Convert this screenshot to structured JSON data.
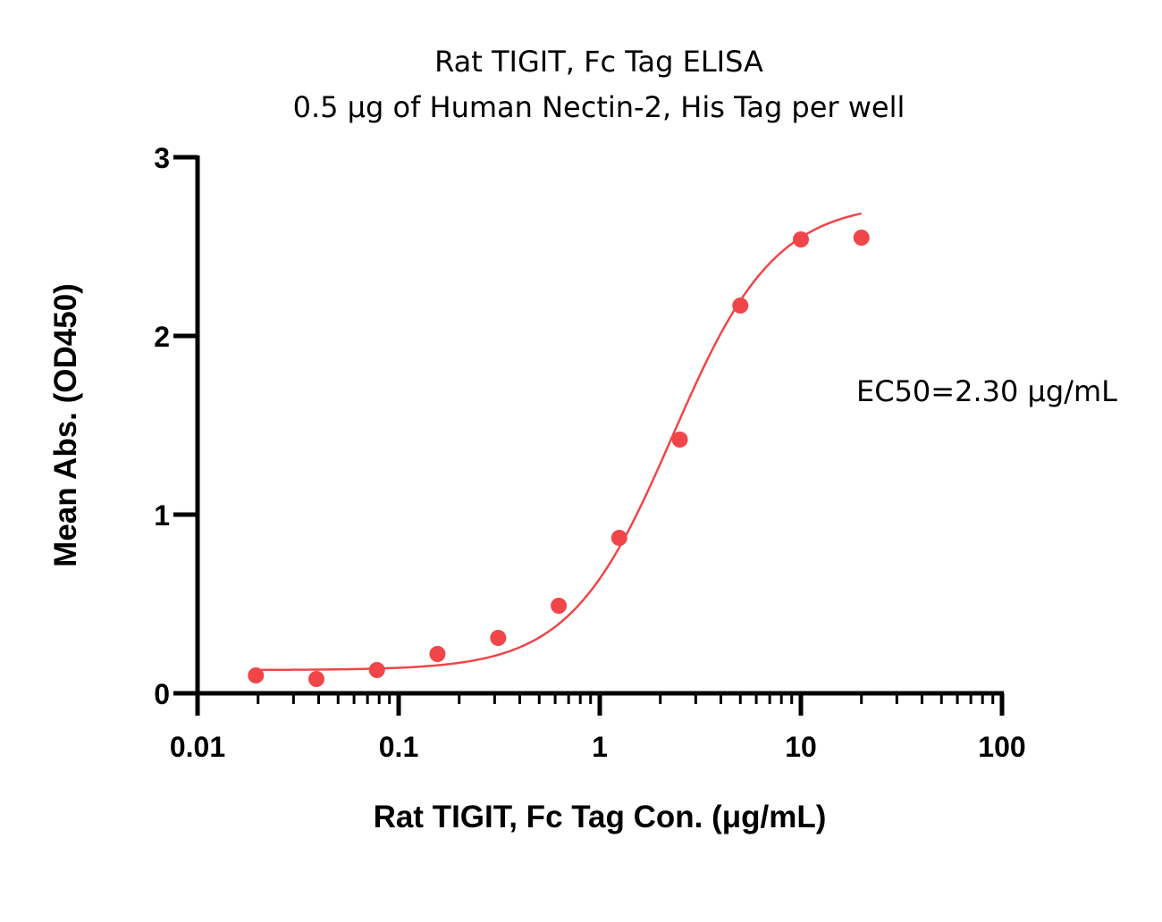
{
  "chart_data": {
    "type": "scatter",
    "title": "Rat TIGIT, Fc Tag ELISA",
    "subtitle": "0.5 μg of Human Nectin-2, His Tag per well",
    "xlabel": "Rat TIGIT, Fc Tag Con. (μg/mL)",
    "ylabel": "Mean Abs. (OD450)",
    "xscale": "log",
    "xlim": [
      0.01,
      100
    ],
    "ylim": [
      0,
      3
    ],
    "xticks": [
      "0.01",
      "0.1",
      "1",
      "10",
      "100"
    ],
    "xtick_values": [
      0.01,
      0.1,
      1,
      10,
      100
    ],
    "yticks": [
      "0",
      "1",
      "2",
      "3"
    ],
    "ytick_values": [
      0,
      1,
      2,
      3
    ],
    "grid": false,
    "annotation": "EC50=2.30 μg/mL",
    "color": "#f0464a",
    "series": [
      {
        "x": [
          0.0195,
          0.039,
          0.078,
          0.156,
          0.3125,
          0.625,
          1.25,
          2.5,
          5,
          10,
          20
        ],
        "y": [
          0.1,
          0.08,
          0.13,
          0.22,
          0.31,
          0.49,
          0.87,
          1.42,
          2.17,
          2.54,
          2.55
        ]
      }
    ],
    "fit": {
      "model": "4PL",
      "bottom": 0.13,
      "top": 2.75,
      "ec50": 2.3,
      "hill": 1.7,
      "x_range": [
        0.0195,
        20
      ]
    }
  }
}
